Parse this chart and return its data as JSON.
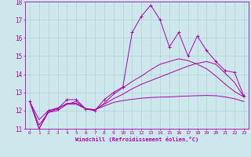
{
  "xlabel": "Windchill (Refroidissement éolien,°C)",
  "bg_color": "#cde8ec",
  "line_color": "#aa00aa",
  "grid_color": "#aacccc",
  "xlim": [
    -0.5,
    23.5
  ],
  "ylim": [
    11,
    18
  ],
  "xticks": [
    0,
    1,
    2,
    3,
    4,
    5,
    6,
    7,
    8,
    9,
    10,
    11,
    12,
    13,
    14,
    15,
    16,
    17,
    18,
    19,
    20,
    21,
    22,
    23
  ],
  "yticks": [
    11,
    12,
    13,
    14,
    15,
    16,
    17,
    18
  ],
  "line1_x": [
    0,
    1,
    2,
    3,
    4,
    5,
    6,
    7,
    8,
    9,
    10,
    11,
    12,
    13,
    14,
    15,
    16,
    17,
    18,
    19,
    20,
    21,
    22,
    23
  ],
  "line1_y": [
    12.5,
    11.0,
    12.0,
    12.1,
    12.6,
    12.6,
    12.1,
    12.0,
    12.6,
    13.0,
    13.3,
    16.3,
    17.2,
    17.8,
    17.0,
    15.5,
    16.3,
    15.0,
    16.1,
    15.3,
    14.7,
    14.2,
    14.1,
    12.8
  ],
  "line2_x": [
    0,
    1,
    2,
    3,
    4,
    5,
    6,
    7,
    8,
    9,
    10,
    11,
    12,
    13,
    14,
    15,
    16,
    17,
    18,
    19,
    20,
    21,
    22,
    23
  ],
  "line2_y": [
    12.5,
    11.2,
    11.9,
    12.1,
    12.4,
    12.4,
    12.1,
    12.05,
    12.35,
    12.65,
    12.9,
    13.2,
    13.45,
    13.65,
    13.85,
    14.05,
    14.25,
    14.45,
    14.6,
    14.7,
    14.55,
    14.05,
    13.55,
    12.75
  ],
  "line3_x": [
    0,
    1,
    2,
    3,
    4,
    5,
    6,
    7,
    8,
    9,
    10,
    11,
    12,
    13,
    14,
    15,
    16,
    17,
    18,
    19,
    20,
    21,
    22,
    23
  ],
  "line3_y": [
    12.5,
    11.5,
    12.0,
    12.15,
    12.35,
    12.35,
    12.1,
    12.05,
    12.25,
    12.45,
    12.55,
    12.62,
    12.68,
    12.72,
    12.74,
    12.75,
    12.78,
    12.8,
    12.82,
    12.83,
    12.82,
    12.75,
    12.65,
    12.5
  ],
  "line4_x": [
    0,
    1,
    2,
    3,
    4,
    5,
    6,
    7,
    8,
    9,
    10,
    11,
    12,
    13,
    14,
    15,
    16,
    17,
    18,
    19,
    20,
    21,
    22,
    23
  ],
  "line4_y": [
    12.5,
    11.0,
    11.9,
    12.0,
    12.35,
    12.5,
    12.1,
    12.0,
    12.4,
    12.9,
    13.25,
    13.6,
    13.9,
    14.25,
    14.55,
    14.7,
    14.85,
    14.75,
    14.55,
    14.3,
    13.9,
    13.45,
    13.05,
    12.75
  ]
}
